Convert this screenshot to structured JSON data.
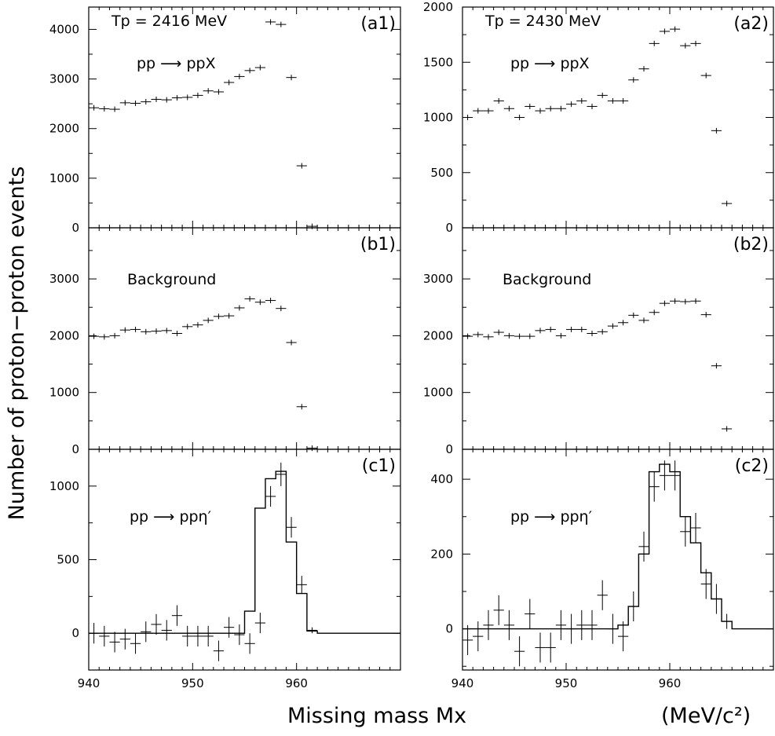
{
  "figure": {
    "ylabel": "Number of proton−proton events",
    "xlabel": "Missing  mass    Mx",
    "xunit": "(MeV/c²)"
  },
  "chart_data": [
    {
      "id": "a1",
      "type": "scatter",
      "tag": "(a1)",
      "header": "Tp = 2416 MeV",
      "annotation": "pp ⟶ ppX",
      "xlim": [
        940,
        970
      ],
      "ylim": [
        0,
        4450
      ],
      "xticks": [
        940,
        950,
        960
      ],
      "yticks": [
        0,
        1000,
        2000,
        3000,
        4000
      ],
      "series": [
        {
          "x": [
            940.5,
            941.5,
            942.5,
            943.5,
            944.5,
            945.5,
            946.5,
            947.5,
            948.5,
            949.5,
            950.5,
            951.5,
            952.5,
            953.5,
            954.5,
            955.5,
            956.5,
            957.5,
            958.5,
            959.5,
            960.5,
            961.5
          ],
          "y": [
            2420,
            2400,
            2390,
            2520,
            2510,
            2540,
            2590,
            2580,
            2620,
            2630,
            2670,
            2760,
            2740,
            2930,
            3050,
            3170,
            3230,
            4150,
            4100,
            3030,
            1250,
            30
          ],
          "err": [
            0,
            0,
            0,
            0,
            0,
            0,
            0,
            0,
            0,
            0,
            0,
            0,
            0,
            0,
            0,
            0,
            0,
            0,
            0,
            0,
            0,
            0
          ]
        }
      ]
    },
    {
      "id": "a2",
      "type": "scatter",
      "tag": "(a2)",
      "header": "Tp = 2430 MeV",
      "annotation": "pp ⟶ ppX",
      "xlim": [
        940,
        970
      ],
      "ylim": [
        0,
        2000
      ],
      "xticks": [
        940,
        950,
        960
      ],
      "yticks": [
        0,
        500,
        1000,
        1500,
        2000
      ],
      "series": [
        {
          "x": [
            940.5,
            941.5,
            942.5,
            943.5,
            944.5,
            945.5,
            946.5,
            947.5,
            948.5,
            949.5,
            950.5,
            951.5,
            952.5,
            953.5,
            954.5,
            955.5,
            956.5,
            957.5,
            958.5,
            959.5,
            960.5,
            961.5,
            962.5,
            963.5,
            964.5,
            965.5
          ],
          "y": [
            1000,
            1060,
            1060,
            1150,
            1080,
            1000,
            1100,
            1060,
            1080,
            1080,
            1120,
            1150,
            1100,
            1200,
            1150,
            1150,
            1340,
            1440,
            1670,
            1780,
            1800,
            1650,
            1670,
            1380,
            880,
            220
          ],
          "err": [
            0,
            0,
            0,
            0,
            0,
            0,
            0,
            0,
            0,
            0,
            0,
            0,
            0,
            0,
            0,
            0,
            0,
            0,
            0,
            0,
            0,
            0,
            0,
            0,
            0,
            0
          ]
        }
      ]
    },
    {
      "id": "b1",
      "type": "scatter",
      "tag": "(b1)",
      "annotation": "Background",
      "xlim": [
        940,
        970
      ],
      "ylim": [
        0,
        3900
      ],
      "xticks": [
        940,
        950,
        960
      ],
      "yticks": [
        0,
        1000,
        2000,
        3000
      ],
      "series": [
        {
          "x": [
            940.5,
            941.5,
            942.5,
            943.5,
            944.5,
            945.5,
            946.5,
            947.5,
            948.5,
            949.5,
            950.5,
            951.5,
            952.5,
            953.5,
            954.5,
            955.5,
            956.5,
            957.5,
            958.5,
            959.5,
            960.5,
            961.5
          ],
          "y": [
            1990,
            1980,
            2000,
            2100,
            2110,
            2070,
            2080,
            2090,
            2040,
            2160,
            2190,
            2270,
            2340,
            2350,
            2490,
            2650,
            2590,
            2620,
            2480,
            1880,
            750,
            20
          ],
          "err": [
            0,
            0,
            0,
            0,
            0,
            0,
            0,
            0,
            0,
            0,
            0,
            0,
            0,
            0,
            0,
            0,
            0,
            0,
            0,
            0,
            0,
            0
          ]
        }
      ]
    },
    {
      "id": "b2",
      "type": "scatter",
      "tag": "(b2)",
      "annotation": "Background",
      "xlim": [
        940,
        970
      ],
      "ylim": [
        0,
        3900
      ],
      "xticks": [
        940,
        950,
        960
      ],
      "yticks": [
        0,
        1000,
        2000,
        3000
      ],
      "series": [
        {
          "x": [
            940.5,
            941.5,
            942.5,
            943.5,
            944.5,
            945.5,
            946.5,
            947.5,
            948.5,
            949.5,
            950.5,
            951.5,
            952.5,
            953.5,
            954.5,
            955.5,
            956.5,
            957.5,
            958.5,
            959.5,
            960.5,
            961.5,
            962.5,
            963.5,
            964.5,
            965.5
          ],
          "y": [
            1990,
            2020,
            1980,
            2060,
            2000,
            1990,
            1990,
            2090,
            2110,
            2000,
            2110,
            2110,
            2040,
            2070,
            2170,
            2230,
            2360,
            2270,
            2410,
            2570,
            2610,
            2600,
            2610,
            2370,
            1470,
            360
          ],
          "err": [
            0,
            0,
            0,
            0,
            0,
            0,
            0,
            0,
            0,
            0,
            0,
            0,
            0,
            0,
            0,
            0,
            0,
            0,
            0,
            0,
            0,
            0,
            0,
            0,
            0,
            0
          ]
        }
      ]
    },
    {
      "id": "c1",
      "type": "scatter",
      "tag": "(c1)",
      "annotation": "pp ⟶ ppη′",
      "xlim": [
        940,
        970
      ],
      "ylim": [
        -250,
        1250
      ],
      "xticks": [
        940,
        950,
        960
      ],
      "xticklabels": [
        "940",
        "950",
        "960"
      ],
      "yticks": [
        0,
        500,
        1000
      ],
      "series": [
        {
          "x": [
            940.5,
            941.5,
            942.5,
            943.5,
            944.5,
            945.5,
            946.5,
            947.5,
            948.5,
            949.5,
            950.5,
            951.5,
            952.5,
            953.5,
            954.5,
            955.5,
            956.5,
            957.5,
            958.5,
            959.5,
            960.5,
            961.5
          ],
          "y": [
            0,
            -20,
            -60,
            -40,
            -70,
            10,
            60,
            20,
            120,
            -20,
            -20,
            -20,
            -120,
            40,
            -10,
            -70,
            70,
            930,
            1080,
            720,
            330,
            20
          ],
          "err": [
            70,
            70,
            70,
            70,
            70,
            70,
            70,
            70,
            70,
            70,
            70,
            70,
            70,
            70,
            70,
            70,
            70,
            70,
            80,
            70,
            60,
            20
          ]
        }
      ],
      "step": {
        "edges": [
          940,
          955,
          956,
          957,
          958,
          959,
          960,
          961,
          962,
          970
        ],
        "values": [
          0,
          150,
          850,
          1050,
          1100,
          620,
          270,
          15,
          0
        ]
      }
    },
    {
      "id": "c2",
      "type": "scatter",
      "tag": "(c2)",
      "annotation": "pp ⟶ ppη′",
      "xlim": [
        940,
        970
      ],
      "ylim": [
        -110,
        480
      ],
      "xticks": [
        940,
        950,
        960
      ],
      "xticklabels": [
        "940",
        "950",
        "960"
      ],
      "yticks": [
        0,
        200,
        400
      ],
      "series": [
        {
          "x": [
            940.5,
            941.5,
            942.5,
            943.5,
            944.5,
            945.5,
            946.5,
            947.5,
            948.5,
            949.5,
            950.5,
            951.5,
            952.5,
            953.5,
            954.5,
            955.5,
            956.5,
            957.5,
            958.5,
            959.5,
            960.5,
            961.5,
            962.5,
            963.5,
            964.5,
            965.5
          ],
          "y": [
            -30,
            -20,
            10,
            50,
            10,
            -60,
            40,
            -50,
            -50,
            10,
            0,
            10,
            10,
            90,
            0,
            -20,
            60,
            220,
            380,
            410,
            410,
            260,
            270,
            120,
            80,
            20
          ],
          "err": [
            40,
            40,
            40,
            40,
            40,
            40,
            40,
            40,
            40,
            40,
            40,
            40,
            40,
            40,
            40,
            40,
            40,
            40,
            40,
            40,
            40,
            40,
            40,
            40,
            40,
            20
          ]
        }
      ],
      "step": {
        "edges": [
          940,
          955,
          956,
          957,
          958,
          959,
          960,
          961,
          962,
          963,
          964,
          965,
          966,
          970
        ],
        "values": [
          0,
          10,
          60,
          200,
          420,
          440,
          420,
          300,
          230,
          150,
          80,
          20,
          0
        ]
      }
    }
  ]
}
